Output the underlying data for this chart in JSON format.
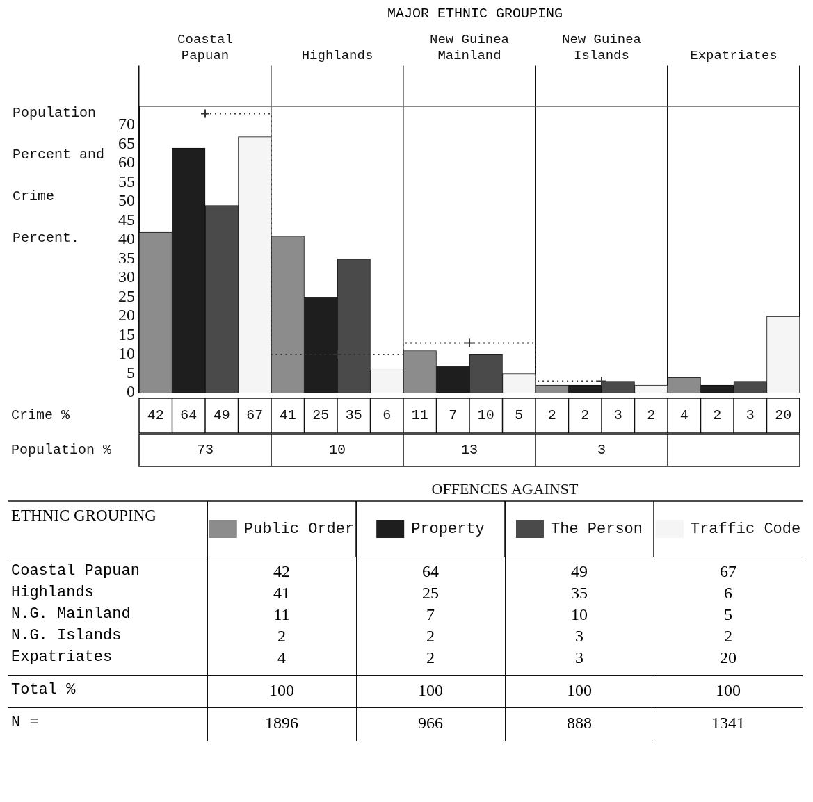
{
  "chart_data": [
    {
      "type": "bar",
      "title": "MAJOR ETHNIC GROUPING",
      "ylabel": "Population Percent and Crime Percent.",
      "legend_title": "OFFENCES AGAINST",
      "categories": [
        "Coastal Papuan",
        "Highlands",
        "New Guinea Mainland",
        "New Guinea Islands",
        "Expatriates"
      ],
      "series": [
        {
          "name": "Public Order",
          "color": "#8c8c8c",
          "values": [
            42,
            41,
            11,
            2,
            4
          ]
        },
        {
          "name": "Property",
          "color": "#1e1e1e",
          "values": [
            64,
            25,
            7,
            2,
            2
          ]
        },
        {
          "name": "The Person",
          "color": "#4a4a4a",
          "values": [
            49,
            35,
            10,
            3,
            3
          ]
        },
        {
          "name": "Traffic Code",
          "color": "#f5f5f5",
          "values": [
            67,
            6,
            5,
            2,
            20
          ]
        },
        {
          "type": "step",
          "color": "#333333",
          "line_style": "dotted",
          "marker": "cross",
          "values": [
            73,
            10,
            13,
            3,
            null
          ]
        }
      ],
      "ylim": [
        0,
        75
      ],
      "yticks": [
        0,
        5,
        10,
        15,
        20,
        25,
        30,
        35,
        40,
        45,
        50,
        55,
        60,
        65,
        70
      ],
      "grid": "x",
      "legend": "bottom",
      "data_labels": true,
      "annotations": [
        "Crime %",
        "Population %"
      ]
    },
    {
      "type": "other",
      "annotations": [
        "ETHNIC GROUPING",
        "Coastal Papuan",
        "42",
        "64",
        "49",
        "67",
        "Highlands",
        "41",
        "25",
        "35",
        "6",
        "N.G. Mainland",
        "11",
        "7",
        "10",
        "5",
        "N.G. Islands",
        "2",
        "2",
        "3",
        "2",
        "Expatriates",
        "4",
        "2",
        "3",
        "20",
        "Total %",
        "100",
        "100",
        "100",
        "100",
        "N =",
        "1896",
        "966",
        "888",
        "1341"
      ]
    }
  ]
}
